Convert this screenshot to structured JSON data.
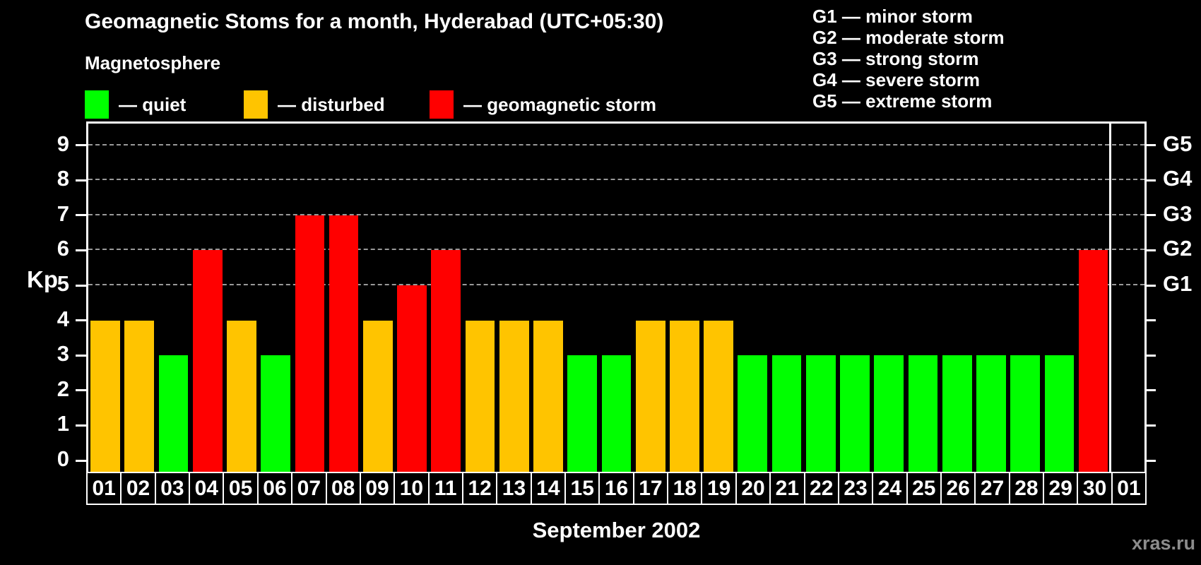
{
  "title": "Geomagnetic Stoms for a month, Hyderabad (UTC+05:30)",
  "legend": {
    "heading": "Magnetosphere",
    "items": [
      {
        "name": "quiet",
        "label": "— quiet",
        "color": "#00ff00"
      },
      {
        "name": "disturbed",
        "label": "— disturbed",
        "color": "#ffc400"
      },
      {
        "name": "storm",
        "label": "— geomagnetic storm",
        "color": "#ff0000"
      }
    ]
  },
  "gscale_legend": {
    "items": [
      "G1 — minor storm",
      "G2 — moderate storm",
      "G3 — strong storm",
      "G4 — severe storm",
      "G5 — extreme storm"
    ]
  },
  "watermark": "xras.ru",
  "chart_data": {
    "type": "bar",
    "title": "Geomagnetic Stoms for a month, Hyderabad (UTC+05:30)",
    "xlabel": "September 2002",
    "ylabel": "Kp",
    "ylim": [
      0,
      9
    ],
    "yticks": [
      0,
      1,
      2,
      3,
      4,
      5,
      6,
      7,
      8,
      9
    ],
    "right_axis": {
      "labels": [
        "G1",
        "G2",
        "G3",
        "G4",
        "G5"
      ],
      "at_kp": [
        5,
        6,
        7,
        8,
        9
      ]
    },
    "gridlines": {
      "at_kp": [
        5,
        6,
        7,
        8,
        9
      ],
      "style": "dashed",
      "color": "#999999"
    },
    "colors": {
      "quiet": "#00ff00",
      "disturbed": "#ffc400",
      "storm": "#ff0000",
      "frame": "#ffffff",
      "background": "#000000"
    },
    "categories": [
      "01",
      "02",
      "03",
      "04",
      "05",
      "06",
      "07",
      "08",
      "09",
      "10",
      "11",
      "12",
      "13",
      "14",
      "15",
      "16",
      "17",
      "18",
      "19",
      "20",
      "21",
      "22",
      "23",
      "24",
      "25",
      "26",
      "27",
      "28",
      "29",
      "30",
      "01"
    ],
    "values": [
      4,
      4,
      3,
      6,
      4,
      3,
      7,
      7,
      4,
      5,
      6,
      4,
      4,
      4,
      3,
      3,
      4,
      4,
      4,
      3,
      3,
      3,
      3,
      3,
      3,
      3,
      3,
      3,
      3,
      6,
      null
    ],
    "statuses": [
      "disturbed",
      "disturbed",
      "quiet",
      "storm",
      "disturbed",
      "quiet",
      "storm",
      "storm",
      "disturbed",
      "storm",
      "storm",
      "disturbed",
      "disturbed",
      "disturbed",
      "quiet",
      "quiet",
      "disturbed",
      "disturbed",
      "disturbed",
      "quiet",
      "quiet",
      "quiet",
      "quiet",
      "quiet",
      "quiet",
      "quiet",
      "quiet",
      "quiet",
      "quiet",
      "storm",
      null
    ],
    "month_boundary_after_index": 29
  }
}
